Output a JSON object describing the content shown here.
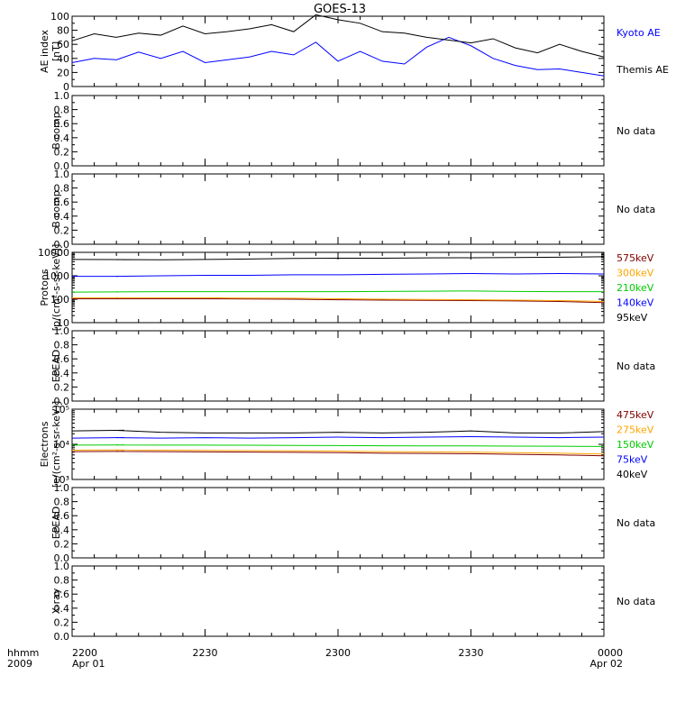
{
  "title": "GOES-13",
  "time_axis": {
    "ticks": [
      "2200",
      "2230",
      "2300",
      "2330",
      "0000"
    ],
    "date_start": "Apr 01",
    "date_end": "Apr 02",
    "corner_label_top": "hhmm",
    "corner_label_bottom": "2009"
  },
  "chart_data": [
    {
      "type": "line",
      "panel": "ae_index",
      "ylabel_line1": "AE index",
      "ylabel_line2": "[nT]",
      "ylim": [
        0,
        100
      ],
      "yticks": [
        "0",
        "20",
        "40",
        "60",
        "80",
        "100"
      ],
      "x": [
        "2200",
        "2205",
        "2210",
        "2215",
        "2220",
        "2225",
        "2230",
        "2235",
        "2240",
        "2245",
        "2250",
        "2255",
        "2300",
        "2305",
        "2310",
        "2315",
        "2320",
        "2325",
        "2330",
        "2335",
        "2340",
        "2345",
        "2350",
        "2355",
        "0000"
      ],
      "series": [
        {
          "name": "Kyoto AE",
          "color": "#0000ff",
          "values": [
            34,
            40,
            38,
            49,
            40,
            50,
            34,
            38,
            42,
            50,
            45,
            63,
            36,
            50,
            36,
            32,
            56,
            70,
            58,
            40,
            30,
            24,
            25,
            20,
            15
          ]
        },
        {
          "name": "Themis AE",
          "color": "#000000",
          "values": [
            65,
            75,
            70,
            76,
            73,
            86,
            75,
            78,
            82,
            88,
            78,
            102,
            95,
            90,
            78,
            76,
            70,
            66,
            62,
            68,
            55,
            48,
            60,
            50,
            42
          ]
        }
      ]
    },
    {
      "type": "line",
      "panel": "b_comp_1",
      "ylabel": "B comp",
      "ylim": [
        0,
        1
      ],
      "yticks": [
        "0.0",
        "0.2",
        "0.4",
        "0.6",
        "0.8",
        "1.0"
      ],
      "annotation": "No data",
      "series": []
    },
    {
      "type": "line",
      "panel": "b_comp_2",
      "ylabel": "B comp",
      "ylim": [
        0,
        1
      ],
      "yticks": [
        "0.0",
        "0.2",
        "0.4",
        "0.6",
        "0.8",
        "1.0"
      ],
      "annotation": "No data",
      "series": []
    },
    {
      "type": "line",
      "panel": "protons",
      "ylabel_line1": "Protons",
      "ylabel_line2": "[p/(cm²-s-sr-keV)]",
      "yscale": "log",
      "ylim": [
        10,
        10000
      ],
      "yticks": [
        "10",
        "100",
        "1000",
        "10000"
      ],
      "x": [
        "2200",
        "2210",
        "2220",
        "2230",
        "2240",
        "2250",
        "2300",
        "2310",
        "2320",
        "2330",
        "2340",
        "2350",
        "0000"
      ],
      "gap_after_index": 0,
      "series": [
        {
          "name": "575keV",
          "color": "#800000",
          "values": [
            105,
            105,
            105,
            105,
            102,
            100,
            95,
            92,
            90,
            88,
            85,
            80,
            72
          ]
        },
        {
          "name": "300keV",
          "color": "#ffa500",
          "values": [
            115,
            115,
            115,
            115,
            112,
            110,
            105,
            100,
            98,
            95,
            92,
            88,
            80
          ]
        },
        {
          "name": "210keV",
          "color": "#00cc00",
          "values": [
            200,
            205,
            210,
            210,
            210,
            210,
            210,
            215,
            220,
            225,
            215,
            210,
            210
          ]
        },
        {
          "name": "140keV",
          "color": "#0000ff",
          "values": [
            950,
            950,
            1000,
            1050,
            1050,
            1100,
            1100,
            1150,
            1200,
            1250,
            1200,
            1250,
            1200
          ]
        },
        {
          "name": "95keV",
          "color": "#000000",
          "values": [
            5000,
            4900,
            4800,
            5000,
            5200,
            5500,
            5600,
            5600,
            5800,
            5900,
            6000,
            6200,
            6500
          ]
        }
      ]
    },
    {
      "type": "line",
      "panel": "epead_1",
      "ylabel": "EPEAD",
      "ylim": [
        0,
        1
      ],
      "yticks": [
        "0.0",
        "0.2",
        "0.4",
        "0.6",
        "0.8",
        "1.0"
      ],
      "annotation": "No data",
      "series": []
    },
    {
      "type": "line",
      "panel": "electrons",
      "ylabel_line1": "Electrons",
      "ylabel_line2": "[e/(cm²-s-sr-keV)]",
      "yscale": "log",
      "ylim": [
        1000,
        100000
      ],
      "yticks": [
        "10³",
        "10⁴",
        "10⁵"
      ],
      "x": [
        "2200",
        "2210",
        "2220",
        "2230",
        "2240",
        "2250",
        "2300",
        "2310",
        "2320",
        "2330",
        "2340",
        "2350",
        "0000"
      ],
      "gap_after_index": 0,
      "series": [
        {
          "name": "475keV",
          "color": "#800000",
          "values": [
            6200,
            6300,
            6200,
            6100,
            6000,
            5900,
            5800,
            5600,
            5500,
            5400,
            5200,
            5000,
            4700
          ]
        },
        {
          "name": "275keV",
          "color": "#ffa500",
          "values": [
            6800,
            6900,
            6800,
            6700,
            6600,
            6500,
            6400,
            6200,
            6100,
            6000,
            5800,
            5600,
            5300
          ]
        },
        {
          "name": "150keV",
          "color": "#00cc00",
          "values": [
            9500,
            9600,
            9500,
            9500,
            9400,
            9300,
            9200,
            9100,
            9000,
            9000,
            8900,
            8800,
            8700
          ]
        },
        {
          "name": "75keV",
          "color": "#0000ff",
          "values": [
            15000,
            15500,
            15000,
            15500,
            15000,
            15500,
            16000,
            15500,
            16000,
            16500,
            16000,
            15500,
            16000
          ]
        },
        {
          "name": "40keV",
          "color": "#000000",
          "values": [
            24000,
            25000,
            22000,
            21000,
            21000,
            21000,
            22000,
            21000,
            22000,
            24000,
            21000,
            21000,
            23000
          ]
        }
      ]
    },
    {
      "type": "line",
      "panel": "epead_2",
      "ylabel": "EPEAD",
      "ylim": [
        0,
        1
      ],
      "yticks": [
        "0.0",
        "0.2",
        "0.4",
        "0.6",
        "0.8",
        "1.0"
      ],
      "annotation": "No data",
      "series": []
    },
    {
      "type": "line",
      "panel": "xray",
      "ylabel": "X-ray",
      "ylim": [
        0,
        1
      ],
      "yticks": [
        "0.0",
        "0.2",
        "0.4",
        "0.6",
        "0.8",
        "1.0"
      ],
      "annotation": "No data",
      "series": []
    }
  ]
}
